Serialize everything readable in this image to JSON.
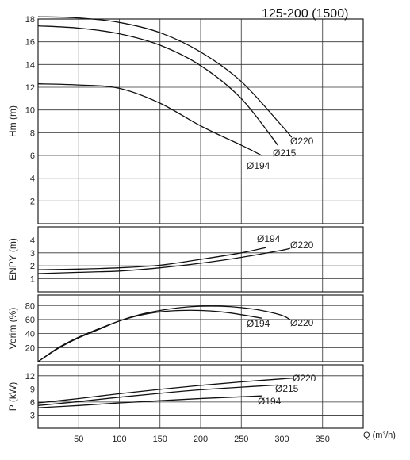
{
  "page": {
    "title": "125-200 (1500)"
  },
  "chart_data": {
    "type": "line",
    "x_axis": {
      "label": "Q (m³/h)",
      "ticks": [
        50,
        100,
        150,
        200,
        250,
        300,
        350
      ],
      "range": [
        0,
        400
      ]
    },
    "panels": [
      {
        "id": "head",
        "ylabel": "Hm (m)",
        "ylim": [
          0,
          18
        ],
        "yticks": [
          2,
          4,
          6,
          8,
          10,
          12,
          14,
          16,
          18
        ],
        "series": [
          {
            "name": "Ø220",
            "label": "Ø220",
            "x": [
              0,
              50,
              100,
              150,
              200,
              250,
              300,
              312
            ],
            "y": [
              18.2,
              18.1,
              17.7,
              16.8,
              15.1,
              12.5,
              8.6,
              7.6
            ]
          },
          {
            "name": "Ø215",
            "label": "Ø215",
            "x": [
              0,
              50,
              100,
              150,
              200,
              250,
              295
            ],
            "y": [
              17.4,
              17.2,
              16.7,
              15.7,
              13.9,
              11.0,
              6.9
            ]
          },
          {
            "name": "Ø194",
            "label": "Ø194",
            "x": [
              0,
              50,
              100,
              150,
              200,
              250,
              275
            ],
            "y": [
              12.3,
              12.2,
              11.9,
              10.6,
              8.6,
              6.9,
              6.0
            ]
          }
        ]
      },
      {
        "id": "npsh",
        "ylabel": "ENPY (m)",
        "ylim": [
          0,
          5
        ],
        "yticks": [
          1,
          2,
          3,
          4
        ],
        "series": [
          {
            "name": "Ø194",
            "label": "Ø194",
            "x": [
              0,
              50,
              100,
              150,
              200,
              250,
              280
            ],
            "y": [
              1.7,
              1.75,
              1.85,
              2.05,
              2.5,
              3.0,
              3.4
            ]
          },
          {
            "name": "Ø220",
            "label": "Ø220",
            "x": [
              0,
              50,
              100,
              150,
              200,
              250,
              300,
              310
            ],
            "y": [
              1.4,
              1.5,
              1.6,
              1.85,
              2.2,
              2.65,
              3.2,
              3.35
            ]
          }
        ]
      },
      {
        "id": "efficiency",
        "ylabel": "Verim (%)",
        "ylim": [
          0,
          95
        ],
        "yticks": [
          20,
          40,
          60,
          80
        ],
        "series": [
          {
            "name": "Ø194",
            "label": "Ø194",
            "x": [
              0,
              25,
              50,
              75,
              100,
              125,
              150,
              175,
              200,
              225,
              250,
              275
            ],
            "y": [
              0,
              20,
              35,
              47,
              58,
              66,
              71,
              73,
              73,
              71,
              67,
              62
            ]
          },
          {
            "name": "Ø220",
            "label": "Ø220",
            "x": [
              0,
              25,
              50,
              75,
              100,
              125,
              150,
              175,
              200,
              225,
              250,
              275,
              300,
              310
            ],
            "y": [
              0,
              19,
              34,
              46,
              58,
              67,
              73,
              77,
              79,
              79,
              77,
              73,
              66,
              60
            ]
          }
        ]
      },
      {
        "id": "power",
        "ylabel": "P (kW)",
        "ylim": [
          0,
          14.5
        ],
        "yticks": [
          3,
          6,
          9,
          12
        ],
        "series": [
          {
            "name": "Ø220",
            "label": "Ø220",
            "x": [
              0,
              50,
              100,
              150,
              200,
              250,
              300,
              315
            ],
            "y": [
              5.8,
              6.8,
              7.9,
              8.9,
              9.8,
              10.6,
              11.3,
              11.5
            ]
          },
          {
            "name": "Ø215",
            "label": "Ø215",
            "x": [
              0,
              50,
              100,
              150,
              200,
              250,
              295
            ],
            "y": [
              5.2,
              6.1,
              7.1,
              8.0,
              8.8,
              9.4,
              9.9
            ]
          },
          {
            "name": "Ø194",
            "label": "Ø194",
            "x": [
              0,
              50,
              100,
              150,
              200,
              250,
              275
            ],
            "y": [
              4.7,
              5.2,
              5.8,
              6.3,
              6.8,
              7.2,
              7.4
            ]
          }
        ]
      }
    ]
  }
}
